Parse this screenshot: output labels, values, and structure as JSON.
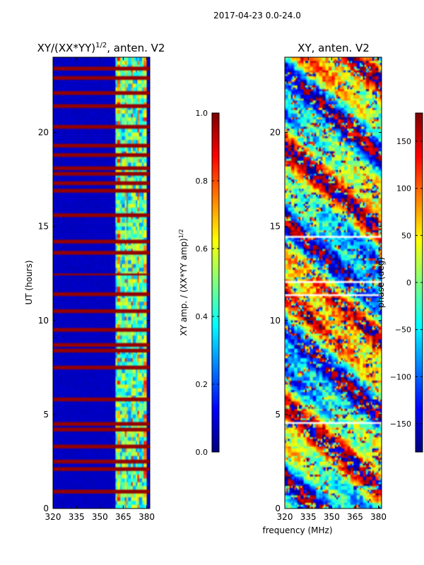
{
  "suptitle": "2017-04-23 0.0-24.0",
  "chart_data": [
    {
      "type": "heatmap",
      "title": "XY/(XX*YY)",
      "title_superscript": "1/2",
      "title_suffix": ", anten. V2",
      "xlabel": "",
      "ylabel": "UT (hours)",
      "xlim": [
        320,
        382
      ],
      "ylim": [
        0,
        24
      ],
      "xticks": [
        320,
        335,
        350,
        365,
        380
      ],
      "yticks": [
        0,
        5,
        10,
        15,
        20
      ],
      "colormap": "jet",
      "colorbar": {
        "label": "XY amp. / (XX*YY amp)",
        "label_superscript": "1/2",
        "range": [
          0.0,
          1.0
        ],
        "ticks": [
          0.0,
          0.2,
          0.4,
          0.6,
          0.8,
          1.0
        ],
        "tick_labels": [
          "0.0",
          "0.2",
          "0.4",
          "0.6",
          "0.8",
          "1.0"
        ]
      },
      "features": {
        "background_value": 0.05,
        "active_band_mhz": [
          360,
          380
        ],
        "full_rows_ut": [
          0.9,
          2.1,
          2.5,
          3.3,
          4.2,
          4.5,
          5.8,
          7.5,
          8.4,
          8.7,
          9.5,
          10.5,
          11.4,
          12.45,
          13.6,
          14.2,
          15.6,
          16.9,
          17.3,
          17.8,
          18.1,
          18.8,
          19.3,
          20.3,
          21.4,
          22.1,
          22.9,
          23.4
        ]
      }
    },
    {
      "type": "heatmap",
      "title": "XY, anten. V2",
      "xlabel": "frequency (MHz)",
      "ylabel": "",
      "xlim": [
        320,
        382
      ],
      "ylim": [
        0,
        24
      ],
      "xticks": [
        320,
        335,
        350,
        365,
        380
      ],
      "yticks": [
        0,
        5,
        10,
        15,
        20
      ],
      "colormap": "jet",
      "colorbar": {
        "label": "phase (deg)",
        "range": [
          -180,
          180
        ],
        "ticks": [
          -150,
          -100,
          -50,
          0,
          50,
          100,
          150
        ],
        "tick_labels": [
          "−150",
          "−100",
          "−50",
          "0",
          "50",
          "100",
          "150"
        ]
      },
      "features": {
        "value_range_deg": [
          -180,
          180
        ],
        "white_gap_rows_ut": [
          4.6,
          9.0,
          11.3,
          12.1,
          14.4,
          16.7,
          18.8,
          19.3,
          22.8
        ]
      }
    }
  ]
}
